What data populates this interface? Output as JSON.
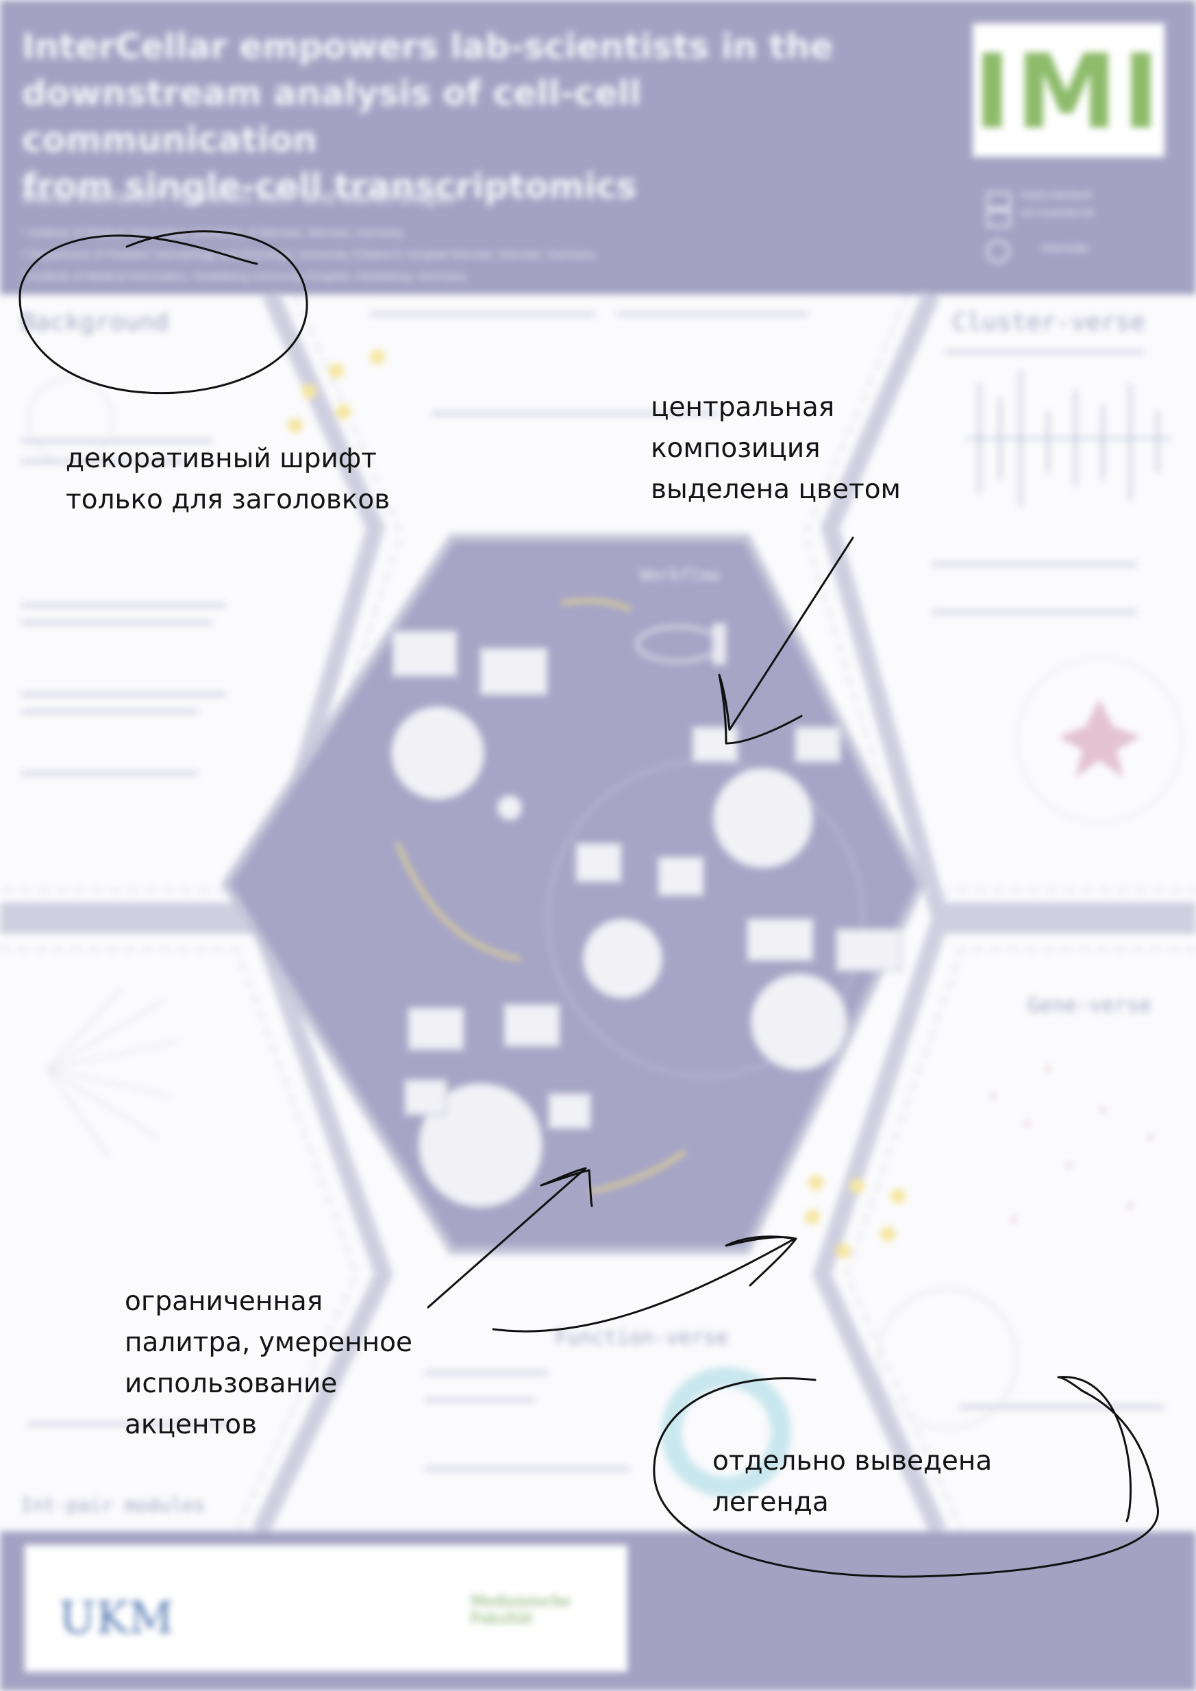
{
  "poster": {
    "title_lines": [
      "InterCellar empowers lab-scientists in the",
      "downstream analysis of cell-cell communication",
      "from single-cell transcriptomics"
    ],
    "authors": "Marta Interlandi¹, Kornelius Kerl² and Martin Dugas³",
    "affiliations": [
      "¹ Institute of Medical Informatics, University of Münster, Münster, Germany",
      "² Department of Pediatric Hematology and Oncology, University Children's Hospital Münster, Münster, Germany",
      "³ Institute of Medical Informatics, Heidelberg University Hospital, Heidelberg, Germany"
    ],
    "logo": "IMI",
    "contact": [
      "marta.interlandi",
      "uni-muenster.de",
      "InterCellar"
    ],
    "sections": {
      "background": "Background",
      "cluster_verse": "Cluster-verse",
      "gene_verse": "Gene-verse",
      "function_verse": "Function-verse",
      "workflow": "Workflow",
      "int_pair": "Int-pair modules"
    },
    "sponsors": [
      "UKM",
      "Medizinische Fakultät"
    ]
  },
  "annotations": {
    "decorative_font": [
      "декоративный шрифт",
      "только для заголовков"
    ],
    "central_composition": [
      "центральная",
      "композиция",
      "выделена цветом"
    ],
    "limited_palette": [
      "ограниченная",
      "палитра, умеренное",
      "использование",
      "акцентов"
    ],
    "legend": [
      "отдельно выведена",
      "легенда"
    ]
  },
  "colors": {
    "header": "#a3a2c3",
    "hexagon": "#a6a5c6",
    "accent_yellow": "#f2dd6a",
    "ink": "#141414"
  }
}
